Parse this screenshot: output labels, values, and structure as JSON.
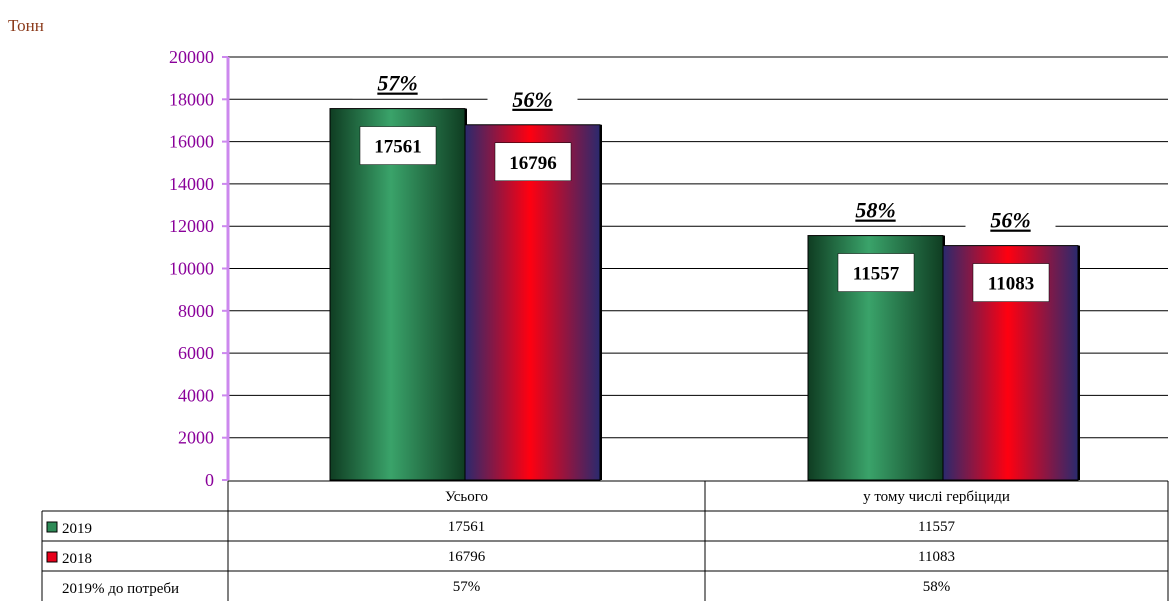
{
  "unit_label": "Тонн",
  "colors": {
    "axis": "#cc88ee",
    "tick_text": "#8a009a",
    "series_2019": "#2e8b57",
    "series_2018": "#e8001a"
  },
  "chart_data": {
    "type": "bar",
    "ylabel": "Тонн",
    "ylim": [
      0,
      20000
    ],
    "yticks": [
      "0",
      "2000",
      "4000",
      "6000",
      "8000",
      "10000",
      "12000",
      "14000",
      "16000",
      "18000",
      "20000"
    ],
    "categories": [
      "Усього",
      "у тому числі гербіциди"
    ],
    "series": [
      {
        "name": "2019",
        "values": [
          17561,
          11557
        ],
        "labels": [
          "17561",
          "11557"
        ],
        "percent_labels": [
          "57%",
          "58%"
        ]
      },
      {
        "name": "2018",
        "values": [
          16796,
          11083
        ],
        "labels": [
          "16796",
          "11083"
        ],
        "percent_labels": [
          "56%",
          "56%"
        ]
      }
    ],
    "table": {
      "rows": [
        {
          "label": "2019",
          "values": [
            "17561",
            "11557"
          ]
        },
        {
          "label": "2018",
          "values": [
            "16796",
            "11083"
          ]
        },
        {
          "label": "2019% до потреби",
          "values": [
            "57%",
            "58%"
          ]
        }
      ]
    },
    "grid": true
  }
}
